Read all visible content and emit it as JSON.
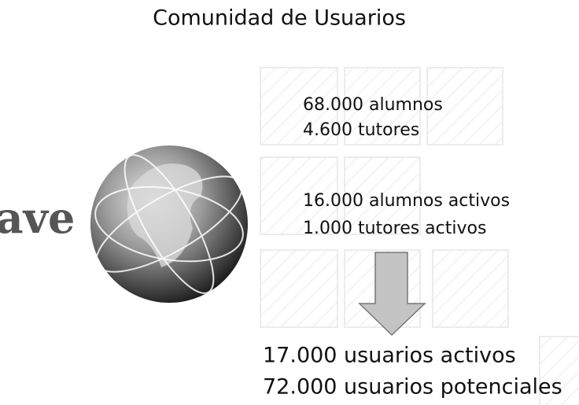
{
  "title": "Comunidad de Usuarios",
  "logo": "ave",
  "groups": [
    {
      "lines": [
        "68.000 alumnos",
        "4.600 tutores"
      ]
    },
    {
      "lines": [
        "16.000 alumnos activos",
        "1.000 tutores activos"
      ]
    }
  ],
  "summary": {
    "lines": [
      "17.000 usuarios activos",
      "72.000 usuarios potenciales"
    ]
  }
}
